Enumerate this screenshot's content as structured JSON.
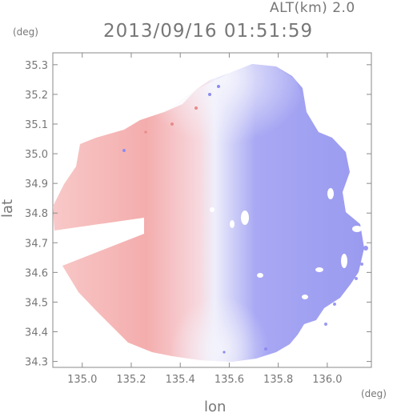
{
  "header": {
    "alt_label": "ALT(km) 2.0",
    "title": "2013/09/16 01:51:59"
  },
  "axes": {
    "xlabel": "lon",
    "ylabel": "lat",
    "x_unit": "(deg)",
    "y_unit": "(deg)",
    "xticks": [
      "135.0",
      "135.2",
      "135.4",
      "135.6",
      "135.8",
      "136.0"
    ],
    "yticks": [
      "35.3",
      "35.2",
      "35.1",
      "35.0",
      "34.9",
      "34.8",
      "34.7",
      "34.6",
      "34.5",
      "34.4",
      "34.3"
    ]
  },
  "chart_data": {
    "type": "heatmap",
    "title": "2013/09/16 01:51:59",
    "xlabel": "lon",
    "ylabel": "lat",
    "xlim": [
      134.88,
      136.18
    ],
    "ylim": [
      34.28,
      35.34
    ],
    "radar_center": {
      "lon": 135.52,
      "lat": 34.8
    },
    "xticks": [
      135.0,
      135.2,
      135.4,
      135.6,
      135.8,
      136.0
    ],
    "yticks": [
      34.3,
      34.4,
      34.5,
      34.6,
      34.7,
      34.8,
      34.9,
      35.0,
      35.1,
      35.2,
      35.3
    ],
    "colors": {
      "negative": "#8a8af5",
      "positive": "#f29a9a",
      "neutral": "#f4f4fc"
    },
    "grid": false
  }
}
